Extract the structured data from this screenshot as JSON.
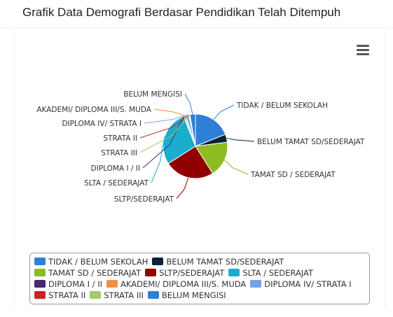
{
  "header": {
    "title": "Grafik Data Demografi Berdasar Pendidikan Telah Ditempuh"
  },
  "toolbar": {
    "menu_icon": "hamburger-menu-icon"
  },
  "chart_data": {
    "type": "pie",
    "title": "Grafik Data Demografi Berdasar Pendidikan Telah Ditempuh",
    "legend_position": "bottom",
    "slices": [
      {
        "label": "TIDAK / BELUM SEKOLAH",
        "value": 19,
        "color": "#2f7ed8"
      },
      {
        "label": "BELUM TAMAT SD/SEDERAJAT",
        "value": 4,
        "color": "#0d233a"
      },
      {
        "label": "TAMAT SD / SEDERAJAT",
        "value": 18,
        "color": "#8bbc21"
      },
      {
        "label": "SLTP/SEDERAJAT",
        "value": 25,
        "color": "#910000"
      },
      {
        "label": "SLTA / SEDERAJAT",
        "value": 28,
        "color": "#1aadce"
      },
      {
        "label": "DIPLOMA I / II",
        "value": 0.5,
        "color": "#492970"
      },
      {
        "label": "AKADEMI/ DIPLOMA III/S. MUDA",
        "value": 0.7,
        "color": "#f28f43"
      },
      {
        "label": "DIPLOMA IV/ STRATA I",
        "value": 1.5,
        "color": "#77a1e5"
      },
      {
        "label": "STRATA II",
        "value": 0.3,
        "color": "#c42525"
      },
      {
        "label": "STRATA III",
        "value": 0.2,
        "color": "#a6c96a"
      },
      {
        "label": "BELUM MENGISI",
        "value": 2.8,
        "color": "#2f7ed8"
      }
    ]
  }
}
